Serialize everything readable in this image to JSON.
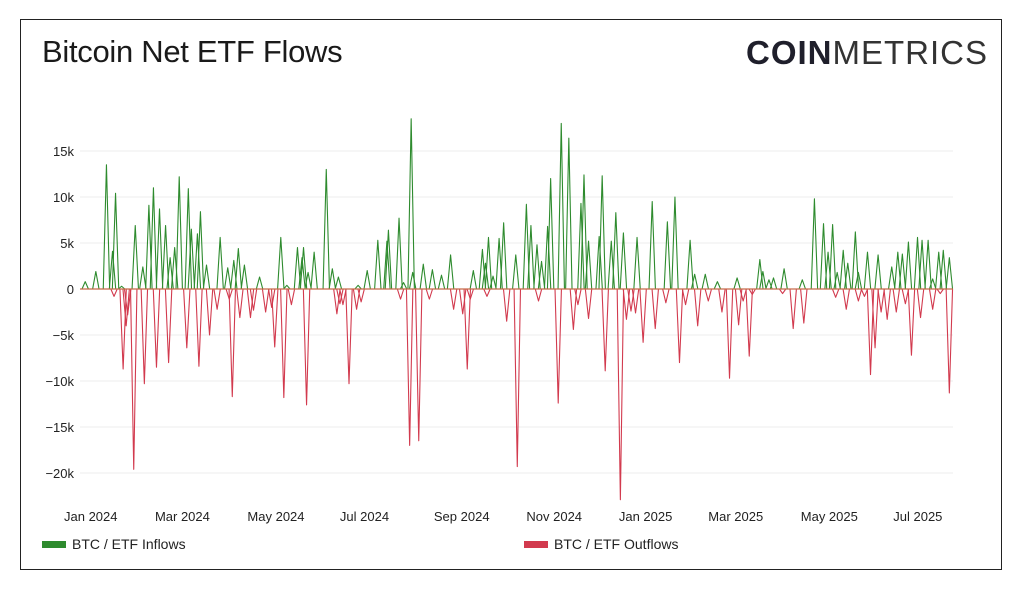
{
  "title": "Bitcoin Net ETF Flows",
  "logo": {
    "bold": "COIN",
    "light": "METRICS"
  },
  "colors": {
    "inflow": "#2e8b2e",
    "outflow": "#d23a4e",
    "grid": "#eeeeee",
    "zero": "#c86a4a"
  },
  "chart_data": {
    "type": "line",
    "title": "Bitcoin Net ETF Flows",
    "xlabel": "",
    "ylabel": "",
    "ylim": [
      -25000,
      20000
    ],
    "xlim": [
      "2024-01-01",
      "2025-08-08"
    ],
    "grid": true,
    "legend": "bottom",
    "y_ticks": [
      {
        "value": 15000,
        "label": "15k"
      },
      {
        "value": 10000,
        "label": "10k"
      },
      {
        "value": 5000,
        "label": "5k"
      },
      {
        "value": 0,
        "label": "0"
      },
      {
        "value": -5000,
        "label": "-5k"
      },
      {
        "value": -10000,
        "label": "-10k"
      },
      {
        "value": -15000,
        "label": "-15k"
      },
      {
        "value": -20000,
        "label": "-20k"
      }
    ],
    "x_ticks": [
      {
        "date": "2024-01-01",
        "label": "Jan 2024"
      },
      {
        "date": "2024-03-01",
        "label": "Mar 2024"
      },
      {
        "date": "2024-05-01",
        "label": "May 2024"
      },
      {
        "date": "2024-07-01",
        "label": "Jul 2024"
      },
      {
        "date": "2024-09-01",
        "label": "Sep 2024"
      },
      {
        "date": "2024-11-01",
        "label": "Nov 2024"
      },
      {
        "date": "2025-01-01",
        "label": "Jan 2025"
      },
      {
        "date": "2025-03-01",
        "label": "Mar 2025"
      },
      {
        "date": "2025-05-01",
        "label": "May 2025"
      },
      {
        "date": "2025-07-01",
        "label": "Jul 2025"
      }
    ],
    "series": [
      {
        "name": "BTC / ETF Inflows",
        "points": [
          [
            "2024-01-15",
            800
          ],
          [
            "2024-01-22",
            1900
          ],
          [
            "2024-01-29",
            13500
          ],
          [
            "2024-02-02",
            4100
          ],
          [
            "2024-02-04",
            10400
          ],
          [
            "2024-02-08",
            300
          ],
          [
            "2024-02-17",
            6900
          ],
          [
            "2024-02-22",
            2400
          ],
          [
            "2024-02-26",
            9100
          ],
          [
            "2024-02-29",
            11000
          ],
          [
            "2024-03-04",
            8700
          ],
          [
            "2024-03-08",
            6900
          ],
          [
            "2024-03-11",
            3400
          ],
          [
            "2024-03-14",
            4500
          ],
          [
            "2024-03-17",
            12200
          ],
          [
            "2024-03-23",
            10900
          ],
          [
            "2024-03-25",
            6500
          ],
          [
            "2024-03-29",
            6000
          ],
          [
            "2024-03-31",
            8400
          ],
          [
            "2024-04-04",
            2600
          ],
          [
            "2024-04-13",
            5600
          ],
          [
            "2024-04-18",
            2300
          ],
          [
            "2024-04-22",
            3100
          ],
          [
            "2024-04-25",
            4400
          ],
          [
            "2024-04-29",
            2600
          ],
          [
            "2024-05-09",
            1300
          ],
          [
            "2024-05-23",
            5600
          ],
          [
            "2024-05-27",
            400
          ],
          [
            "2024-06-03",
            4500
          ],
          [
            "2024-06-06",
            3400
          ],
          [
            "2024-06-07",
            4500
          ],
          [
            "2024-06-10",
            1800
          ],
          [
            "2024-06-14",
            4000
          ],
          [
            "2024-06-22",
            13000
          ],
          [
            "2024-06-26",
            2200
          ],
          [
            "2024-06-30",
            1300
          ],
          [
            "2024-07-13",
            400
          ],
          [
            "2024-07-19",
            2000
          ],
          [
            "2024-07-26",
            5300
          ],
          [
            "2024-08-01",
            5200
          ],
          [
            "2024-08-02",
            6400
          ],
          [
            "2024-08-09",
            7700
          ],
          [
            "2024-08-12",
            700
          ],
          [
            "2024-08-17",
            18500
          ],
          [
            "2024-08-18",
            1800
          ],
          [
            "2024-08-25",
            2700
          ],
          [
            "2024-08-31",
            2100
          ],
          [
            "2024-09-06",
            1500
          ],
          [
            "2024-09-12",
            3700
          ],
          [
            "2024-09-27",
            2000
          ],
          [
            "2024-10-03",
            4300
          ],
          [
            "2024-10-05",
            2800
          ],
          [
            "2024-10-07",
            5600
          ],
          [
            "2024-10-10",
            1400
          ],
          [
            "2024-10-14",
            5500
          ],
          [
            "2024-10-17",
            7200
          ],
          [
            "2024-10-25",
            3700
          ],
          [
            "2024-11-01",
            9200
          ],
          [
            "2024-11-04",
            6900
          ],
          [
            "2024-11-08",
            4800
          ],
          [
            "2024-11-11",
            3000
          ],
          [
            "2024-11-15",
            6800
          ],
          [
            "2024-11-17",
            12000
          ],
          [
            "2024-11-24",
            18000
          ],
          [
            "2024-11-29",
            16400
          ],
          [
            "2024-12-07",
            9300
          ],
          [
            "2024-12-09",
            12400
          ],
          [
            "2024-12-12",
            5200
          ],
          [
            "2024-12-19",
            5700
          ],
          [
            "2024-12-21",
            12300
          ],
          [
            "2024-12-27",
            5200
          ],
          [
            "2024-12-30",
            8300
          ],
          [
            "2025-01-04",
            6100
          ],
          [
            "2025-01-13",
            5600
          ],
          [
            "2025-01-23",
            9500
          ],
          [
            "2025-02-02",
            7300
          ],
          [
            "2025-02-07",
            10000
          ],
          [
            "2025-02-17",
            5300
          ],
          [
            "2025-02-20",
            1600
          ],
          [
            "2025-02-27",
            1600
          ],
          [
            "2025-03-07",
            800
          ],
          [
            "2025-03-20",
            1200
          ],
          [
            "2025-04-04",
            3200
          ],
          [
            "2025-04-06",
            1900
          ],
          [
            "2025-04-10",
            1000
          ],
          [
            "2025-04-13",
            1200
          ],
          [
            "2025-04-20",
            2200
          ],
          [
            "2025-05-02",
            1000
          ],
          [
            "2025-05-10",
            9800
          ],
          [
            "2025-05-16",
            7100
          ],
          [
            "2025-05-19",
            4000
          ],
          [
            "2025-05-22",
            7000
          ],
          [
            "2025-05-25",
            1800
          ],
          [
            "2025-05-29",
            4200
          ],
          [
            "2025-06-01",
            2800
          ],
          [
            "2025-06-06",
            6200
          ],
          [
            "2025-06-08",
            1800
          ],
          [
            "2025-06-14",
            4000
          ],
          [
            "2025-06-21",
            3700
          ],
          [
            "2025-06-30",
            2400
          ],
          [
            "2025-07-04",
            4000
          ],
          [
            "2025-07-07",
            3800
          ],
          [
            "2025-07-11",
            5100
          ],
          [
            "2025-07-17",
            5600
          ],
          [
            "2025-07-20",
            5300
          ],
          [
            "2025-07-24",
            5300
          ],
          [
            "2025-07-27",
            1100
          ],
          [
            "2025-07-31",
            4000
          ],
          [
            "2025-08-03",
            4200
          ],
          [
            "2025-08-07",
            3400
          ]
        ]
      },
      {
        "name": "BTC / ETF Outflows",
        "points": [
          [
            "2024-02-03",
            -800
          ],
          [
            "2024-02-09",
            -8700
          ],
          [
            "2024-02-11",
            -4000
          ],
          [
            "2024-02-12",
            -2800
          ],
          [
            "2024-02-16",
            -19600
          ],
          [
            "2024-02-23",
            -10300
          ],
          [
            "2024-03-02",
            -8500
          ],
          [
            "2024-03-10",
            -8000
          ],
          [
            "2024-03-22",
            -6400
          ],
          [
            "2024-03-30",
            -8400
          ],
          [
            "2024-04-06",
            -5000
          ],
          [
            "2024-04-11",
            -2200
          ],
          [
            "2024-04-19",
            -1100
          ],
          [
            "2024-04-21",
            -11700
          ],
          [
            "2024-04-26",
            -3100
          ],
          [
            "2024-05-03",
            -3100
          ],
          [
            "2024-05-05",
            -2300
          ],
          [
            "2024-05-13",
            -2500
          ],
          [
            "2024-05-17",
            -2000
          ],
          [
            "2024-05-19",
            -6300
          ],
          [
            "2024-05-25",
            -11800
          ],
          [
            "2024-05-30",
            -1700
          ],
          [
            "2024-06-09",
            -12600
          ],
          [
            "2024-06-29",
            -2700
          ],
          [
            "2024-07-01",
            -1600
          ],
          [
            "2024-07-03",
            -1700
          ],
          [
            "2024-07-07",
            -10300
          ],
          [
            "2024-07-12",
            -2200
          ],
          [
            "2024-07-15",
            -1400
          ],
          [
            "2024-08-10",
            -1100
          ],
          [
            "2024-08-16",
            -17000
          ],
          [
            "2024-08-22",
            -16500
          ],
          [
            "2024-08-29",
            -1100
          ],
          [
            "2024-09-14",
            -2200
          ],
          [
            "2024-09-20",
            -2700
          ],
          [
            "2024-09-23",
            -8700
          ],
          [
            "2024-09-25",
            -1100
          ],
          [
            "2024-10-06",
            -800
          ],
          [
            "2024-10-19",
            -3500
          ],
          [
            "2024-10-26",
            -19300
          ],
          [
            "2024-11-09",
            -1300
          ],
          [
            "2024-11-22",
            -12400
          ],
          [
            "2024-12-02",
            -4400
          ],
          [
            "2024-12-05",
            -1700
          ],
          [
            "2024-12-12",
            -3200
          ],
          [
            "2024-12-23",
            -8900
          ],
          [
            "2025-01-02",
            -22900
          ],
          [
            "2025-01-06",
            -3300
          ],
          [
            "2025-01-09",
            -2400
          ],
          [
            "2025-01-12",
            -2600
          ],
          [
            "2025-01-17",
            -5800
          ],
          [
            "2025-01-25",
            -4300
          ],
          [
            "2025-02-01",
            -1500
          ],
          [
            "2025-02-10",
            -8000
          ],
          [
            "2025-02-14",
            -1700
          ],
          [
            "2025-02-22",
            -4000
          ],
          [
            "2025-03-01",
            -1300
          ],
          [
            "2025-03-10",
            -2500
          ],
          [
            "2025-03-15",
            -9700
          ],
          [
            "2025-03-21",
            -3900
          ],
          [
            "2025-03-24",
            -1300
          ],
          [
            "2025-03-28",
            -7300
          ],
          [
            "2025-03-30",
            -600
          ],
          [
            "2025-04-19",
            -500
          ],
          [
            "2025-04-26",
            -4300
          ],
          [
            "2025-05-03",
            -3700
          ],
          [
            "2025-05-24",
            -900
          ],
          [
            "2025-05-31",
            -2200
          ],
          [
            "2025-06-08",
            -1300
          ],
          [
            "2025-06-12",
            -800
          ],
          [
            "2025-06-16",
            -9300
          ],
          [
            "2025-06-19",
            -6400
          ],
          [
            "2025-06-23",
            -2500
          ],
          [
            "2025-06-27",
            -3300
          ],
          [
            "2025-07-03",
            -2500
          ],
          [
            "2025-07-09",
            -1600
          ],
          [
            "2025-07-13",
            -7200
          ],
          [
            "2025-07-19",
            -3100
          ],
          [
            "2025-07-27",
            -2200
          ],
          [
            "2025-08-01",
            -500
          ],
          [
            "2025-08-07",
            -11300
          ]
        ]
      }
    ]
  },
  "legend": {
    "inflows": "BTC / ETF Inflows",
    "outflows": "BTC / ETF Outflows"
  }
}
